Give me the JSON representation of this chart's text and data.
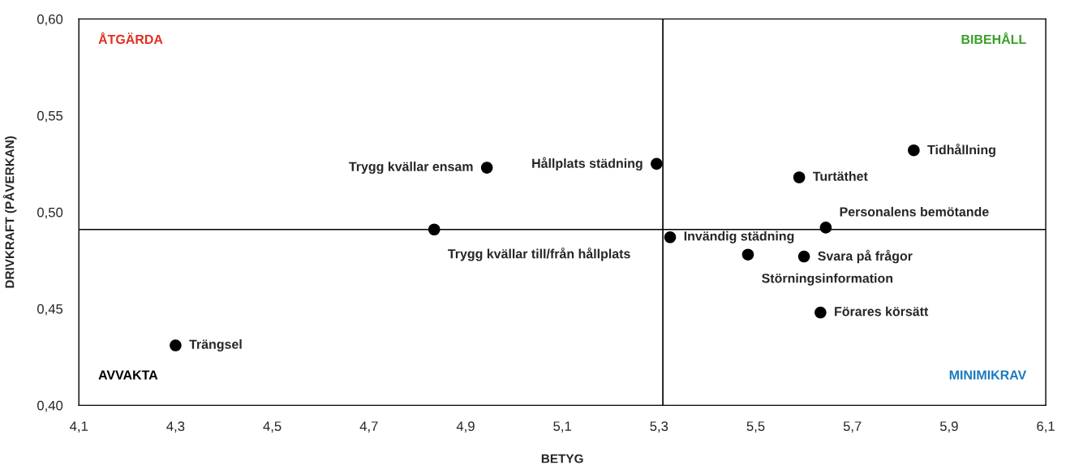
{
  "chart_data": {
    "type": "scatter",
    "xlabel": "BETYG",
    "ylabel": "DRIVKRAFT (PÅVERKAN)",
    "x": [
      4.3,
      4.835,
      4.944,
      5.295,
      5.323,
      5.484,
      5.6,
      5.59,
      5.645,
      5.634,
      5.827
    ],
    "series": [
      {
        "color": "#000000",
        "values": [
          0.431,
          0.491,
          0.523,
          0.525,
          0.487,
          0.478,
          0.477,
          0.518,
          0.492,
          0.448,
          0.532
        ]
      }
    ],
    "marker": "circle",
    "grid": false,
    "xlim": [
      4.1,
      6.1
    ],
    "xticks": [
      {
        "value": 4.1,
        "label": "4,1"
      },
      {
        "value": 4.3,
        "label": "4,3"
      },
      {
        "value": 4.5,
        "label": "4,5"
      },
      {
        "value": 4.7,
        "label": "4,7"
      },
      {
        "value": 4.9,
        "label": "4,9"
      },
      {
        "value": 5.1,
        "label": "5,1"
      },
      {
        "value": 5.3,
        "label": "5,3"
      },
      {
        "value": 5.5,
        "label": "5,5"
      },
      {
        "value": 5.7,
        "label": "5,7"
      },
      {
        "value": 5.9,
        "label": "5,9"
      },
      {
        "value": 6.1,
        "label": "6,1"
      }
    ],
    "ylim": [
      0.4,
      0.6
    ],
    "yticks": [
      {
        "value": 0.4,
        "label": "0,40"
      },
      {
        "value": 0.45,
        "label": "0,45"
      },
      {
        "value": 0.5,
        "label": "0,50"
      },
      {
        "value": 0.55,
        "label": "0,55"
      },
      {
        "value": 0.6,
        "label": "0,60"
      }
    ],
    "ref_lines": [
      {
        "axis": "x",
        "value": 5.308,
        "color": "#000000"
      },
      {
        "axis": "y",
        "value": 0.491,
        "color": "#000000"
      }
    ],
    "annotations": [
      {
        "text": "Trängsel",
        "x": 4.3,
        "y": 0.431
      },
      {
        "text": "Trygg kvällar till/från hållplats",
        "x": 4.835,
        "y": 0.491
      },
      {
        "text": "Trygg kvällar ensam",
        "x": 4.944,
        "y": 0.523
      },
      {
        "text": "Hållplats städning",
        "x": 5.295,
        "y": 0.525
      },
      {
        "text": "Invändig städning",
        "x": 5.323,
        "y": 0.487
      },
      {
        "text": "Störningsinformation",
        "x": 5.484,
        "y": 0.478
      },
      {
        "text": "Svara på frågor",
        "x": 5.6,
        "y": 0.477
      },
      {
        "text": "Turtäthet",
        "x": 5.59,
        "y": 0.518
      },
      {
        "text": "Personalens bemötande",
        "x": 5.645,
        "y": 0.492
      },
      {
        "text": "Förares körsätt",
        "x": 5.634,
        "y": 0.448
      },
      {
        "text": "Tidhållning",
        "x": 5.827,
        "y": 0.532
      },
      "ÅTGÄRDA",
      "BIBEHÅLL",
      "AVVAKTA",
      "MINIMIKRAV"
    ]
  }
}
